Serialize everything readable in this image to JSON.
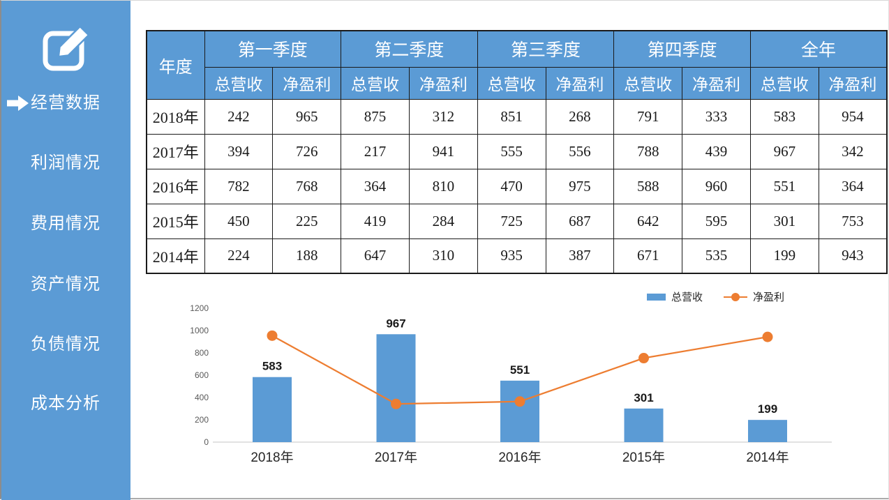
{
  "colors": {
    "accent_blue": "#5B9BD5",
    "accent_orange": "#ED7D31",
    "table_border": "#1a1a1a",
    "axis_label_gray": "#595959",
    "axis_line_gray": "#d9d9d9"
  },
  "sidebar": {
    "items": [
      {
        "label": "经营数据",
        "active": true
      },
      {
        "label": "利润情况",
        "active": false
      },
      {
        "label": "费用情况",
        "active": false
      },
      {
        "label": "资产情况",
        "active": false
      },
      {
        "label": "负债情况",
        "active": false
      },
      {
        "label": "成本分析",
        "active": false
      }
    ]
  },
  "table": {
    "year_header": "年度",
    "group_headers": [
      "第一季度",
      "第二季度",
      "第三季度",
      "第四季度",
      "全年"
    ],
    "sub_headers": [
      "总营收",
      "净盈利"
    ],
    "rows": [
      {
        "year": "2018年",
        "values": [
          242,
          965,
          875,
          312,
          851,
          268,
          791,
          333,
          583,
          954
        ]
      },
      {
        "year": "2017年",
        "values": [
          394,
          726,
          217,
          941,
          555,
          556,
          788,
          439,
          967,
          342
        ]
      },
      {
        "year": "2016年",
        "values": [
          782,
          768,
          364,
          810,
          470,
          975,
          588,
          960,
          551,
          364
        ]
      },
      {
        "year": "2015年",
        "values": [
          450,
          225,
          419,
          284,
          725,
          687,
          642,
          595,
          301,
          753
        ]
      },
      {
        "year": "2014年",
        "values": [
          224,
          188,
          647,
          310,
          935,
          387,
          671,
          535,
          199,
          943
        ]
      }
    ]
  },
  "chart_data": {
    "type": "bar+line",
    "categories": [
      "2018年",
      "2017年",
      "2016年",
      "2015年",
      "2014年"
    ],
    "series": [
      {
        "name": "总营收",
        "type": "bar",
        "color": "#5B9BD5",
        "values": [
          583,
          967,
          551,
          301,
          199
        ]
      },
      {
        "name": "净盈利",
        "type": "line",
        "color": "#ED7D31",
        "values": [
          954,
          342,
          364,
          753,
          943
        ]
      }
    ],
    "title": "",
    "xlabel": "",
    "ylabel": "",
    "ylim": [
      0,
      1200
    ],
    "ytick_step": 200,
    "grid": false,
    "bar_labels": true,
    "legend_position": "top-right"
  }
}
